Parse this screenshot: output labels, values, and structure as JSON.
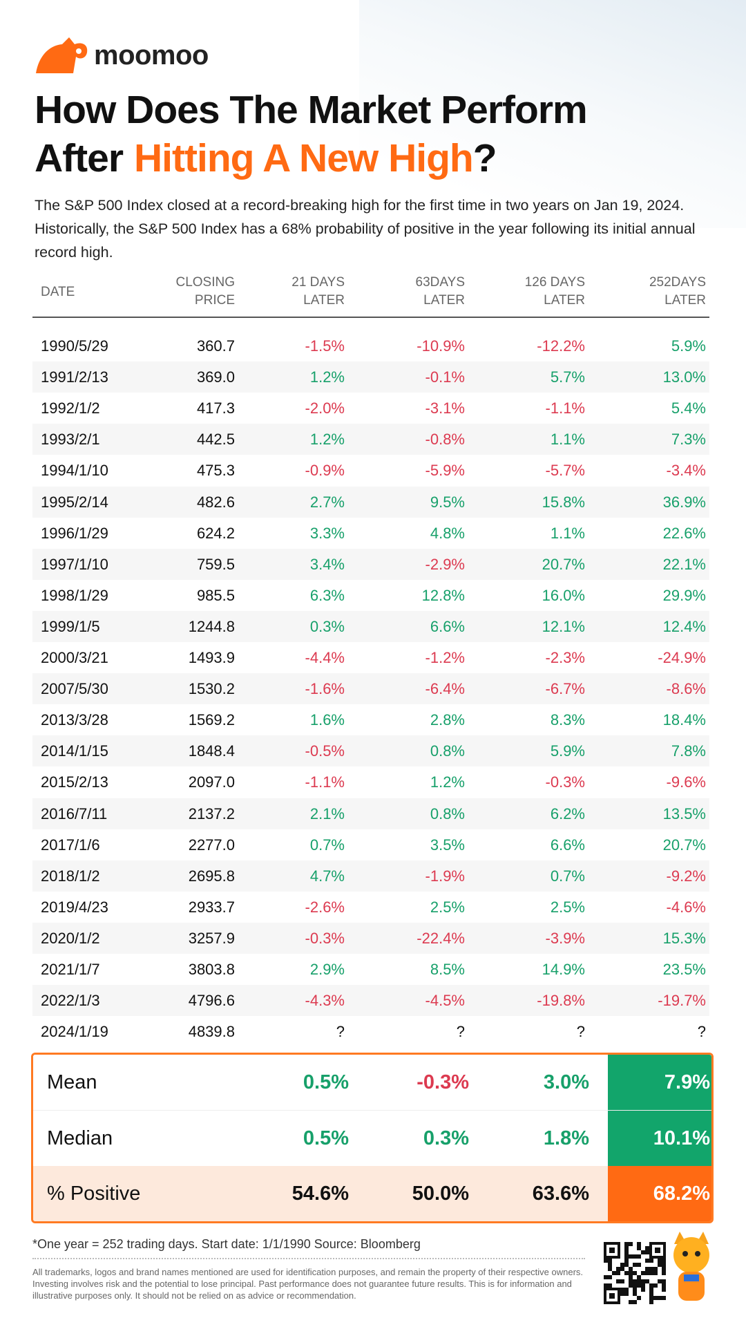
{
  "header": {
    "brand": "moomoo",
    "title_line1": "How Does The Market Perform",
    "title_line2_before": "After",
    "title_highlight": "Hitting A New High",
    "title_line2_after": "?",
    "description": "The S&P 500 Index closed at a record-breaking high for the first time in two years on Jan 19, 2024. Historically, the S&P 500 Index has a 68% probability of positive in the year following its initial annual record high."
  },
  "table": {
    "columns": [
      [
        "DATE"
      ],
      [
        "CLOSING",
        "PRICE"
      ],
      [
        "21 DAYS",
        "LATER"
      ],
      [
        "63DAYS",
        "LATER"
      ],
      [
        "126 DAYS",
        "LATER"
      ],
      [
        "252DAYS",
        "LATER"
      ]
    ],
    "rows": [
      [
        "1990/5/29",
        "360.7",
        "-1.5%",
        "-10.9%",
        "-12.2%",
        "5.9%"
      ],
      [
        "1991/2/13",
        "369.0",
        "1.2%",
        "-0.1%",
        "5.7%",
        "13.0%"
      ],
      [
        "1992/1/2",
        "417.3",
        "-2.0%",
        "-3.1%",
        "-1.1%",
        "5.4%"
      ],
      [
        "1993/2/1",
        "442.5",
        "1.2%",
        "-0.8%",
        "1.1%",
        "7.3%"
      ],
      [
        "1994/1/10",
        "475.3",
        "-0.9%",
        "-5.9%",
        "-5.7%",
        "-3.4%"
      ],
      [
        "1995/2/14",
        "482.6",
        "2.7%",
        "9.5%",
        "15.8%",
        "36.9%"
      ],
      [
        "1996/1/29",
        "624.2",
        "3.3%",
        "4.8%",
        "1.1%",
        "22.6%"
      ],
      [
        "1997/1/10",
        "759.5",
        "3.4%",
        "-2.9%",
        "20.7%",
        "22.1%"
      ],
      [
        "1998/1/29",
        "985.5",
        "6.3%",
        "12.8%",
        "16.0%",
        "29.9%"
      ],
      [
        "1999/1/5",
        "1244.8",
        "0.3%",
        "6.6%",
        "12.1%",
        "12.4%"
      ],
      [
        "2000/3/21",
        "1493.9",
        "-4.4%",
        "-1.2%",
        "-2.3%",
        "-24.9%"
      ],
      [
        "2007/5/30",
        "1530.2",
        "-1.6%",
        "-6.4%",
        "-6.7%",
        "-8.6%"
      ],
      [
        "2013/3/28",
        "1569.2",
        "1.6%",
        "2.8%",
        "8.3%",
        "18.4%"
      ],
      [
        "2014/1/15",
        "1848.4",
        "-0.5%",
        "0.8%",
        "5.9%",
        "7.8%"
      ],
      [
        "2015/2/13",
        "2097.0",
        "-1.1%",
        "1.2%",
        "-0.3%",
        "-9.6%"
      ],
      [
        "2016/7/11",
        "2137.2",
        "2.1%",
        "0.8%",
        "6.2%",
        "13.5%"
      ],
      [
        "2017/1/6",
        "2277.0",
        "0.7%",
        "3.5%",
        "6.6%",
        "20.7%"
      ],
      [
        "2018/1/2",
        "2695.8",
        "4.7%",
        "-1.9%",
        "0.7%",
        "-9.2%"
      ],
      [
        "2019/4/23",
        "2933.7",
        "-2.6%",
        "2.5%",
        "2.5%",
        "-4.6%"
      ],
      [
        "2020/1/2",
        "3257.9",
        "-0.3%",
        "-22.4%",
        "-3.9%",
        "15.3%"
      ],
      [
        "2021/1/7",
        "3803.8",
        "2.9%",
        "8.5%",
        "14.9%",
        "23.5%"
      ],
      [
        "2022/1/3",
        "4796.6",
        "-4.3%",
        "-4.5%",
        "-19.8%",
        "-19.7%"
      ],
      [
        "2024/1/19",
        "4839.8",
        "?",
        "?",
        "?",
        "?"
      ]
    ]
  },
  "summary": {
    "rows": [
      [
        "Mean",
        "0.5%",
        "-0.3%",
        "3.0%",
        "7.9%"
      ],
      [
        "Median",
        "0.5%",
        "0.3%",
        "1.8%",
        "10.1%"
      ],
      [
        "% Positive",
        "54.6%",
        "50.0%",
        "63.6%",
        "68.2%"
      ]
    ]
  },
  "footer": {
    "note": "*One year = 252 trading days. Start date: 1/1/1990  Source: Bloomberg",
    "disclaimer": "All trademarks, logos and brand names mentioned are used for identification purposes, and remain the property of their respective owners. Investing involves risk and the potential to lose principal. Past performance does not guarantee future results. This is for information and illustrative purposes only. It should not be relied on as advice or recommendation."
  }
}
